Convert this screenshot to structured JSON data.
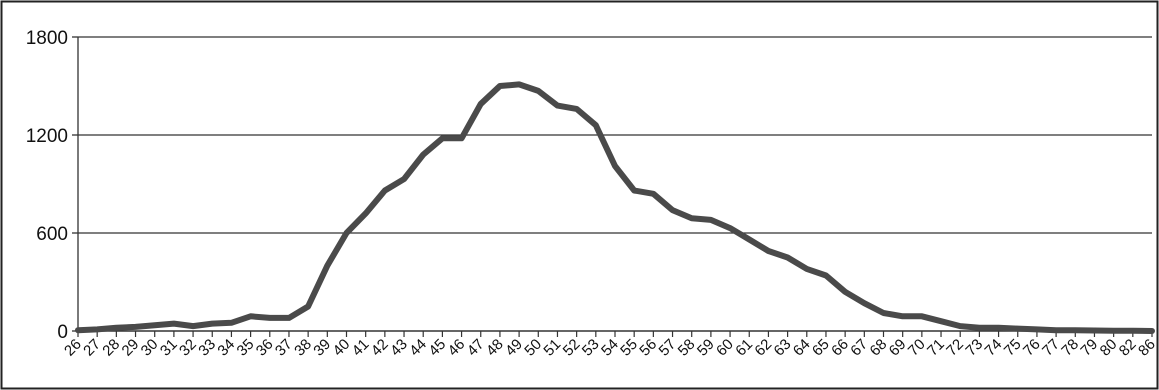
{
  "chart_data": {
    "type": "line",
    "title": "",
    "xlabel": "",
    "ylabel": "",
    "ylim": [
      0,
      1800
    ],
    "yticks": [
      0,
      600,
      1200,
      1800
    ],
    "grid": "horizontal",
    "legend": "none",
    "line_color": "#4a4a4a",
    "x": [
      "26",
      "27",
      "28",
      "29",
      "30",
      "31",
      "32",
      "33",
      "34",
      "35",
      "36",
      "37",
      "38",
      "39",
      "40",
      "41",
      "42",
      "43",
      "44",
      "45",
      "46",
      "47",
      "48",
      "49",
      "50",
      "51",
      "52",
      "53",
      "54",
      "55",
      "56",
      "57",
      "58",
      "59",
      "60",
      "61",
      "62",
      "63",
      "64",
      "65",
      "66",
      "67",
      "68",
      "69",
      "70",
      "71",
      "72",
      "73",
      "74",
      "75",
      "76",
      "77",
      "78",
      "79",
      "80",
      "82",
      "86"
    ],
    "series": [
      {
        "values": [
          5,
          10,
          20,
          25,
          35,
          45,
          30,
          45,
          50,
          90,
          80,
          80,
          150,
          400,
          600,
          720,
          860,
          930,
          1080,
          1180,
          1180,
          1390,
          1500,
          1510,
          1470,
          1380,
          1360,
          1260,
          1010,
          860,
          840,
          740,
          690,
          680,
          630,
          560,
          490,
          450,
          380,
          340,
          240,
          170,
          110,
          90,
          90,
          60,
          30,
          20,
          20,
          15,
          10,
          5,
          5,
          3,
          2,
          1,
          0
        ]
      }
    ]
  }
}
